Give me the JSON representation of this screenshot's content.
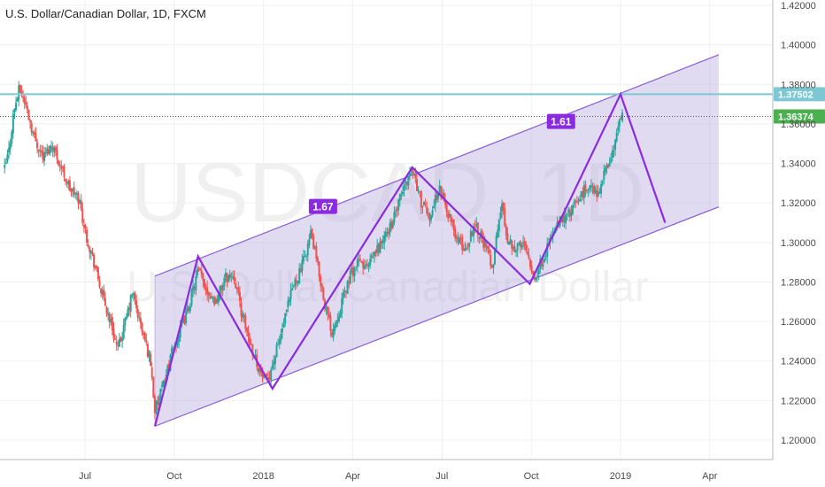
{
  "chart_data": {
    "type": "candlestick",
    "title": "U.S. Dollar/Canadian Dollar, 1D, FXCM",
    "watermark": {
      "symbol": "USDCAD, 1D",
      "name": "U.S. Dollar/Canadian Dollar"
    },
    "y_axis": {
      "ylim": [
        1.19,
        1.425
      ],
      "ticks": [
        "1.42000",
        "1.40000",
        "1.38000",
        "1.36000",
        "1.34000",
        "1.32000",
        "1.30000",
        "1.28000",
        "1.26000",
        "1.24000",
        "1.22000",
        "1.20000"
      ],
      "position": "right"
    },
    "x_axis": {
      "ticks": [
        {
          "label": "Jul",
          "m": 14
        },
        {
          "label": "Oct",
          "m": 17
        },
        {
          "label": "2018",
          "m": 20
        },
        {
          "label": "Apr",
          "m": 23
        },
        {
          "label": "Jul",
          "m": 26
        },
        {
          "label": "Oct",
          "m": 29
        },
        {
          "label": "2019",
          "m": 32
        },
        {
          "label": "Apr",
          "m": 35
        }
      ]
    },
    "price_path": [
      [
        11.3,
        1.337
      ],
      [
        11.45,
        1.347
      ],
      [
        11.6,
        1.366
      ],
      [
        11.8,
        1.378
      ],
      [
        12.0,
        1.37
      ],
      [
        12.3,
        1.353
      ],
      [
        12.6,
        1.343
      ],
      [
        12.9,
        1.35
      ],
      [
        13.2,
        1.338
      ],
      [
        13.5,
        1.327
      ],
      [
        13.8,
        1.322
      ],
      [
        14.0,
        1.306
      ],
      [
        14.3,
        1.29
      ],
      [
        14.6,
        1.272
      ],
      [
        14.9,
        1.258
      ],
      [
        15.1,
        1.245
      ],
      [
        15.4,
        1.262
      ],
      [
        15.6,
        1.275
      ],
      [
        15.8,
        1.262
      ],
      [
        16.0,
        1.251
      ],
      [
        16.2,
        1.24
      ],
      [
        16.35,
        1.215
      ],
      [
        16.6,
        1.226
      ],
      [
        16.9,
        1.243
      ],
      [
        17.2,
        1.255
      ],
      [
        17.5,
        1.268
      ],
      [
        17.8,
        1.286
      ],
      [
        18.1,
        1.276
      ],
      [
        18.4,
        1.27
      ],
      [
        18.7,
        1.282
      ],
      [
        19.0,
        1.284
      ],
      [
        19.3,
        1.262
      ],
      [
        19.6,
        1.247
      ],
      [
        19.9,
        1.234
      ],
      [
        20.1,
        1.229
      ],
      [
        20.4,
        1.243
      ],
      [
        20.7,
        1.26
      ],
      [
        21.0,
        1.278
      ],
      [
        21.3,
        1.288
      ],
      [
        21.6,
        1.305
      ],
      [
        21.9,
        1.282
      ],
      [
        22.1,
        1.266
      ],
      [
        22.3,
        1.255
      ],
      [
        22.6,
        1.268
      ],
      [
        22.9,
        1.283
      ],
      [
        23.2,
        1.29
      ],
      [
        23.5,
        1.287
      ],
      [
        23.8,
        1.296
      ],
      [
        24.1,
        1.303
      ],
      [
        24.4,
        1.313
      ],
      [
        24.7,
        1.327
      ],
      [
        25.0,
        1.338
      ],
      [
        25.3,
        1.32
      ],
      [
        25.6,
        1.313
      ],
      [
        25.9,
        1.328
      ],
      [
        26.2,
        1.315
      ],
      [
        26.5,
        1.302
      ],
      [
        26.8,
        1.296
      ],
      [
        27.1,
        1.31
      ],
      [
        27.4,
        1.3
      ],
      [
        27.7,
        1.288
      ],
      [
        28.0,
        1.32
      ],
      [
        28.2,
        1.302
      ],
      [
        28.5,
        1.297
      ],
      [
        28.8,
        1.3
      ],
      [
        29.1,
        1.282
      ],
      [
        29.4,
        1.292
      ],
      [
        29.7,
        1.304
      ],
      [
        30.0,
        1.311
      ],
      [
        30.3,
        1.315
      ],
      [
        30.6,
        1.322
      ],
      [
        30.9,
        1.329
      ],
      [
        31.2,
        1.324
      ],
      [
        31.5,
        1.336
      ],
      [
        31.8,
        1.349
      ],
      [
        32.0,
        1.364
      ],
      [
        32.1,
        1.363
      ]
    ],
    "horizontal_lines": [
      {
        "label": "1.37502",
        "y": 1.37502,
        "color": "#7ec8d6",
        "style": "solid"
      },
      {
        "label": "1.36374",
        "y": 1.36374,
        "color": "#555555",
        "style": "dotted"
      }
    ],
    "channel": {
      "upper": [
        [
          16.35,
          1.283
        ],
        [
          35.3,
          1.395
        ]
      ],
      "lower": [
        [
          16.35,
          1.207
        ],
        [
          35.3,
          1.318
        ]
      ],
      "fill": "#b7a9e0",
      "stroke": "#8a5bd6"
    },
    "zigzag": {
      "color": "#8a2be2",
      "points": [
        [
          16.35,
          1.207
        ],
        [
          17.8,
          1.293
        ],
        [
          20.3,
          1.226
        ],
        [
          25.0,
          1.338
        ],
        [
          28.95,
          1.279
        ],
        [
          32.0,
          1.375
        ],
        [
          33.5,
          1.31
        ]
      ]
    },
    "ratio_labels": [
      {
        "text": "1.67",
        "x": 22.0,
        "y": 1.318
      },
      {
        "text": "1.61",
        "x": 30.0,
        "y": 1.361
      }
    ],
    "colors": {
      "up": "#26a69a",
      "down": "#ef5350",
      "ticker": "#ffffff",
      "line_tag": "#7ec8d6",
      "last_tag": "#4caf50",
      "accent": "#8a2be2"
    }
  }
}
